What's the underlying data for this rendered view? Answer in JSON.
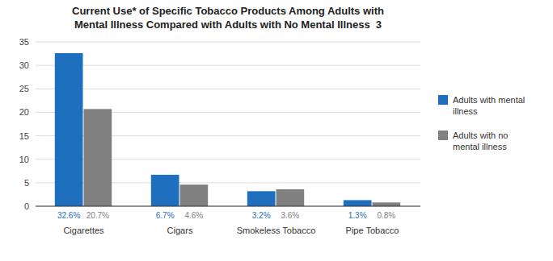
{
  "chart_data": {
    "type": "bar",
    "title": "Current Use* of Specific Tobacco Products Among Adults with\nMental Illness Compared with Adults with No Mental Illness 3",
    "categories": [
      "Cigarettes",
      "Cigars",
      "Smokeless Tobacco",
      "Pipe Tobacco"
    ],
    "series": [
      {
        "name": "Adults with mental\nillness",
        "color": "#1F6FBF",
        "values": [
          32.6,
          6.7,
          3.2,
          1.3
        ],
        "value_labels": [
          "32.6%",
          "6.7%",
          "3.2%",
          "1.3%"
        ]
      },
      {
        "name": "Adults with no\nmental illness",
        "color": "#808080",
        "values": [
          20.7,
          4.6,
          3.6,
          0.8
        ],
        "value_labels": [
          "20.7%",
          "4.6%",
          "3.6%",
          "0.8%"
        ]
      }
    ],
    "ylim": [
      0,
      35
    ],
    "yticks": [
      0,
      5,
      10,
      15,
      20,
      25,
      30,
      35
    ],
    "grid": true,
    "legend": "right",
    "data_labels": true
  }
}
